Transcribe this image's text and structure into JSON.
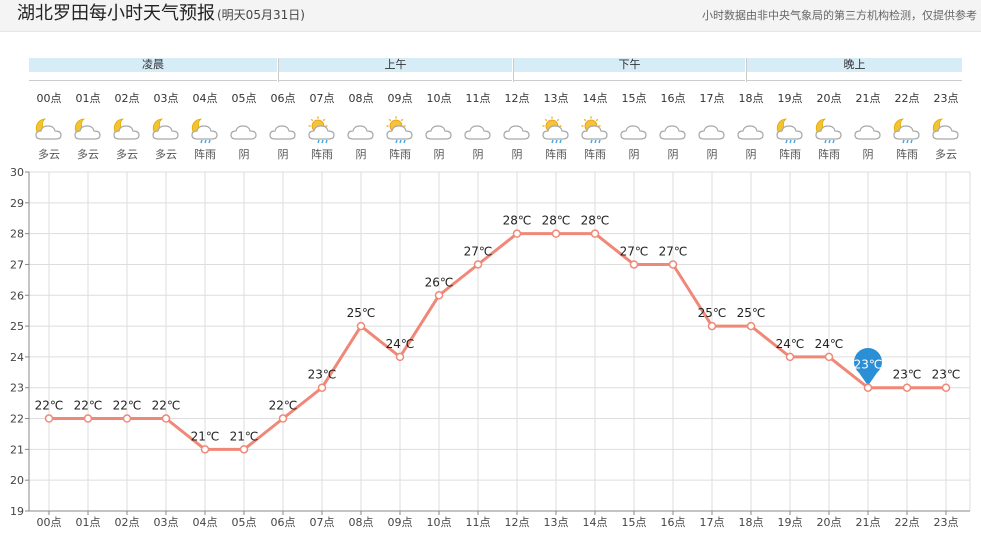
{
  "header": {
    "title": "湖北罗田每小时天气预报",
    "subtitle": "(明天05月31日)",
    "note": "小时数据由非中央气象局的第三方机构检测，仅提供参考"
  },
  "periods": [
    "凌晨",
    "上午",
    "下午",
    "晚上"
  ],
  "colors": {
    "line": "#f08878",
    "grid": "#dddddd",
    "period_bg": "#d6ecf7",
    "marker": "#2b8fd6"
  },
  "hours": [
    {
      "label": "00点",
      "icon": "partly-cloudy-night-icon",
      "cond": "多云"
    },
    {
      "label": "01点",
      "icon": "partly-cloudy-night-icon",
      "cond": "多云"
    },
    {
      "label": "02点",
      "icon": "partly-cloudy-night-icon",
      "cond": "多云"
    },
    {
      "label": "03点",
      "icon": "partly-cloudy-night-icon",
      "cond": "多云"
    },
    {
      "label": "04点",
      "icon": "shower-night-icon",
      "cond": "阵雨"
    },
    {
      "label": "05点",
      "icon": "overcast-icon",
      "cond": "阴"
    },
    {
      "label": "06点",
      "icon": "overcast-icon",
      "cond": "阴"
    },
    {
      "label": "07点",
      "icon": "shower-day-icon",
      "cond": "阵雨"
    },
    {
      "label": "08点",
      "icon": "overcast-icon",
      "cond": "阴"
    },
    {
      "label": "09点",
      "icon": "shower-day-icon",
      "cond": "阵雨"
    },
    {
      "label": "10点",
      "icon": "overcast-icon",
      "cond": "阴"
    },
    {
      "label": "11点",
      "icon": "overcast-icon",
      "cond": "阴"
    },
    {
      "label": "12点",
      "icon": "overcast-icon",
      "cond": "阴"
    },
    {
      "label": "13点",
      "icon": "shower-day-icon",
      "cond": "阵雨"
    },
    {
      "label": "14点",
      "icon": "shower-day-icon",
      "cond": "阵雨"
    },
    {
      "label": "15点",
      "icon": "overcast-icon",
      "cond": "阴"
    },
    {
      "label": "16点",
      "icon": "overcast-icon",
      "cond": "阴"
    },
    {
      "label": "17点",
      "icon": "overcast-icon",
      "cond": "阴"
    },
    {
      "label": "18点",
      "icon": "overcast-icon",
      "cond": "阴"
    },
    {
      "label": "19点",
      "icon": "shower-night-icon",
      "cond": "阵雨"
    },
    {
      "label": "20点",
      "icon": "shower-night-icon",
      "cond": "阵雨"
    },
    {
      "label": "21点",
      "icon": "overcast-icon",
      "cond": "阴"
    },
    {
      "label": "22点",
      "icon": "shower-night-icon",
      "cond": "阵雨"
    },
    {
      "label": "23点",
      "icon": "partly-cloudy-night-icon",
      "cond": "多云"
    }
  ],
  "chart_data": {
    "type": "line",
    "x": [
      "00点",
      "01点",
      "02点",
      "03点",
      "04点",
      "05点",
      "06点",
      "07点",
      "08点",
      "09点",
      "10点",
      "11点",
      "12点",
      "13点",
      "14点",
      "15点",
      "16点",
      "17点",
      "18点",
      "19点",
      "20点",
      "21点",
      "22点",
      "23点"
    ],
    "values": [
      22,
      22,
      22,
      22,
      21,
      21,
      22,
      23,
      25,
      24,
      26,
      27,
      28,
      28,
      28,
      27,
      27,
      25,
      25,
      24,
      24,
      23,
      23,
      23
    ],
    "data_labels": [
      "22℃",
      "22℃",
      "22℃",
      "22℃",
      "21℃",
      "21℃",
      "22℃",
      "23℃",
      "25℃",
      "24℃",
      "26℃",
      "27℃",
      "28℃",
      "28℃",
      "28℃",
      "27℃",
      "27℃",
      "25℃",
      "25℃",
      "24℃",
      "24℃",
      "23℃",
      "23℃",
      "23℃"
    ],
    "ylim": [
      19,
      30
    ],
    "yticks": [
      19,
      20,
      21,
      22,
      23,
      24,
      25,
      26,
      27,
      28,
      29,
      30
    ],
    "grid": true,
    "highlight_index": 21
  }
}
